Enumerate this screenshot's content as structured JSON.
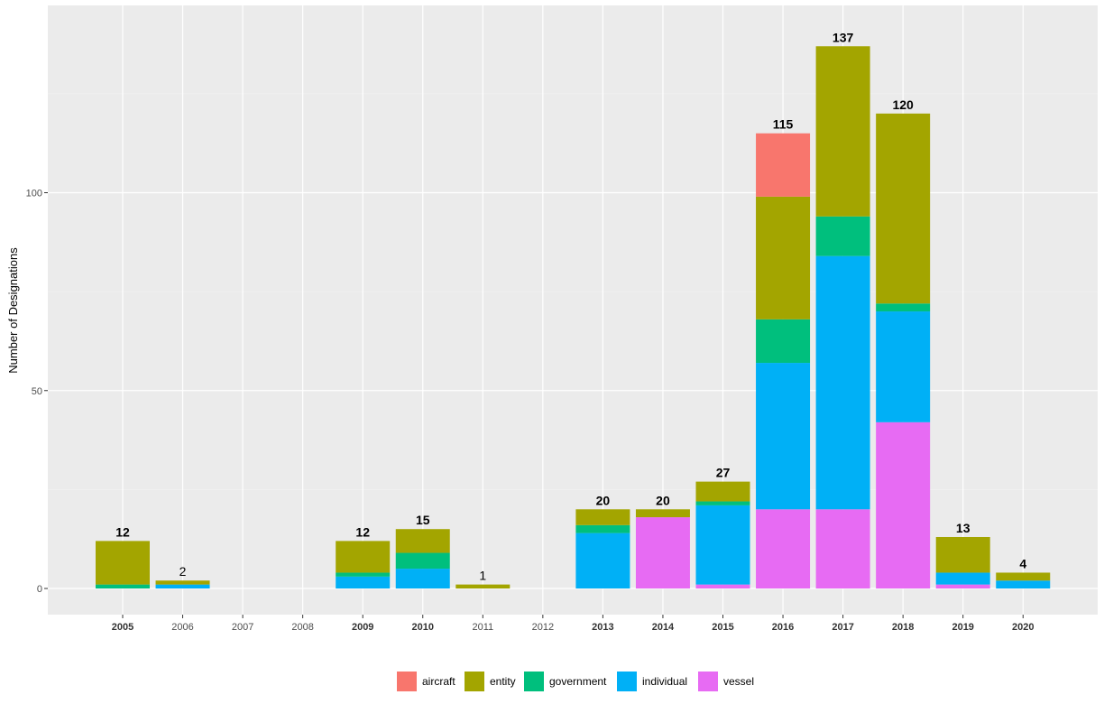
{
  "chart_data": {
    "type": "bar",
    "stacked": true,
    "ylabel": "Number of Designations",
    "xlabel": "",
    "ylim": [
      -6,
      144
    ],
    "yticks": [
      0,
      50,
      100
    ],
    "grid": true,
    "legend_position": "bottom",
    "categories": [
      "2005",
      "2006",
      "2007",
      "2008",
      "2009",
      "2010",
      "2011",
      "2012",
      "2013",
      "2014",
      "2015",
      "2016",
      "2017",
      "2018",
      "2019",
      "2020"
    ],
    "bold_categories": [
      "2005",
      "2009",
      "2010",
      "2013",
      "2014",
      "2015",
      "2016",
      "2017",
      "2018",
      "2019",
      "2020"
    ],
    "series": [
      {
        "name": "vessel",
        "color": "#E76BF3",
        "values": [
          0,
          0,
          0,
          0,
          0,
          0,
          0,
          0,
          0,
          18,
          1,
          20,
          20,
          42,
          1,
          0
        ]
      },
      {
        "name": "individual",
        "color": "#00B0F6",
        "values": [
          0,
          1,
          0,
          0,
          3,
          5,
          0,
          0,
          14,
          0,
          20,
          37,
          64,
          28,
          3,
          2
        ]
      },
      {
        "name": "government",
        "color": "#00BF7D",
        "values": [
          1,
          0,
          0,
          0,
          1,
          4,
          0,
          0,
          2,
          0,
          1,
          11,
          10,
          2,
          0,
          0
        ]
      },
      {
        "name": "entity",
        "color": "#A3A500",
        "values": [
          11,
          1,
          0,
          0,
          8,
          6,
          1,
          0,
          4,
          2,
          5,
          31,
          43,
          48,
          9,
          2
        ]
      },
      {
        "name": "aircraft",
        "color": "#F8766D",
        "values": [
          0,
          0,
          0,
          0,
          0,
          0,
          0,
          0,
          0,
          0,
          0,
          16,
          0,
          0,
          0,
          0
        ]
      }
    ],
    "totals": [
      "12",
      "2",
      "",
      "",
      "12",
      "15",
      "1",
      "",
      "20",
      "20",
      "27",
      "115",
      "137",
      "120",
      "13",
      "4"
    ],
    "legend_order": [
      "aircraft",
      "entity",
      "government",
      "individual",
      "vessel"
    ]
  }
}
